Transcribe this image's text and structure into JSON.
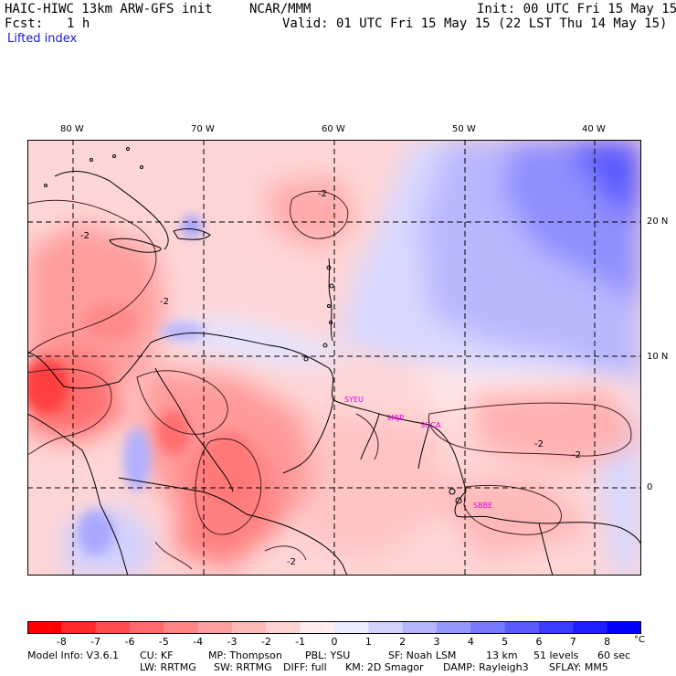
{
  "header": {
    "model": "HAIC-HIWC 13km ARW-GFS init",
    "center": "NCAR/MMM",
    "init": "Init: 00 UTC Fri 15 May 15",
    "fcst_label": "Fcst:",
    "fcst_value": "1 h",
    "valid": "Valid: 01 UTC Fri 15 May 15 (22 LST Thu 14 May 15)"
  },
  "field_name": "Lifted index",
  "map": {
    "lon_labels": [
      "80 W",
      "70 W",
      "60 W",
      "50 W",
      "40 W"
    ],
    "lat_labels": [
      "20 N",
      "10 N",
      "0"
    ],
    "contour_label": "-2",
    "stations": [
      "SYEU",
      "SMJP",
      "SOCA",
      "SBBE"
    ]
  },
  "colorbar": {
    "labels": [
      "-8",
      "-7",
      "-6",
      "-5",
      "-4",
      "-3",
      "-2",
      "-1",
      "0",
      "1",
      "2",
      "3",
      "4",
      "5",
      "6",
      "7",
      "8"
    ],
    "unit": "°C",
    "colors": [
      "#ff0000",
      "#ff2a2a",
      "#ff4d4d",
      "#ff6b6b",
      "#ff8585",
      "#ff9e9e",
      "#ffb8b8",
      "#ffd2d2",
      "#ffecec",
      "#ececff",
      "#d2d2ff",
      "#b4b4ff",
      "#9696ff",
      "#7878ff",
      "#5a5aff",
      "#3c3cff",
      "#1e1eff",
      "#0000ff"
    ]
  },
  "footer": {
    "line1": [
      "Model Info: V3.6.1",
      "CU: KF",
      "MP: Thompson",
      "PBL: YSU",
      "SF: Noah LSM",
      "13 km",
      "51 levels",
      "60 sec"
    ],
    "line2": [
      "LW: RRTMG",
      "SW: RRTMG",
      "DIFF: full",
      "KM: 2D Smagor",
      "DAMP: Rayleigh3",
      "SFLAY: MM5"
    ]
  }
}
